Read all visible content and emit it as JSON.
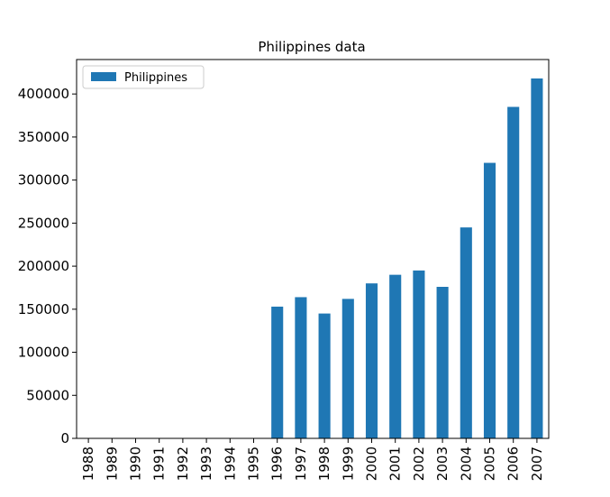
{
  "chart_data": {
    "type": "bar",
    "title": "Philippines data",
    "xlabel": "",
    "ylabel": "",
    "categories": [
      "1988",
      "1989",
      "1990",
      "1991",
      "1992",
      "1993",
      "1994",
      "1995",
      "1996",
      "1997",
      "1998",
      "1999",
      "2000",
      "2001",
      "2002",
      "2003",
      "2004",
      "2005",
      "2006",
      "2007"
    ],
    "series": [
      {
        "name": " Philippines",
        "color": "#1f77b4",
        "values": [
          0,
          0,
          0,
          0,
          0,
          0,
          0,
          0,
          153000,
          164000,
          145000,
          162000,
          180000,
          190000,
          195000,
          176000,
          245000,
          320000,
          385000,
          418000
        ]
      }
    ],
    "ylim": [
      0,
      440000
    ],
    "yticks": [
      0,
      50000,
      100000,
      150000,
      200000,
      250000,
      300000,
      350000,
      400000
    ],
    "ytick_labels": [
      "0",
      "50000",
      "100000",
      "150000",
      "200000",
      "250000",
      "300000",
      "350000",
      "400000"
    ],
    "grid": false,
    "legend_position": "top-left"
  }
}
